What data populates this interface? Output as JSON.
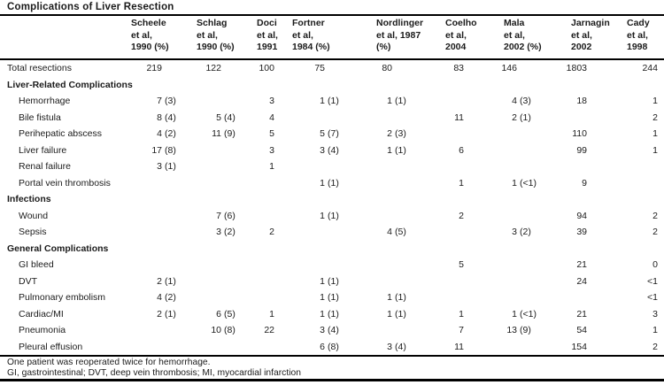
{
  "title": "Complications of Liver Resection",
  "colors": {
    "text": "#1b1b1b",
    "line": "#000000",
    "background": "#ffffff"
  },
  "table": {
    "columns": [
      {
        "id": "scheele",
        "label": "Scheele et al, 1990 (%)",
        "lines": [
          "Scheele",
          "et al,",
          "1990 (%)"
        ]
      },
      {
        "id": "schlag",
        "label": "Schlag et al, 1990 (%)",
        "lines": [
          "Schlag",
          "et al,",
          "1990 (%)"
        ]
      },
      {
        "id": "doci",
        "label": "Doci et al, 1991",
        "lines": [
          "Doci",
          "et al,",
          "1991"
        ]
      },
      {
        "id": "fortner",
        "label": "Fortner et al, 1984 (%)",
        "lines": [
          "Fortner",
          "et al,",
          "1984 (%)"
        ]
      },
      {
        "id": "nordlinger",
        "label": "Nordlinger et al, 1987 (%)",
        "lines": [
          "Nordlinger",
          "et al, 1987",
          "(%)"
        ]
      },
      {
        "id": "coelho",
        "label": "Coelho et al, 2004",
        "lines": [
          "Coelho",
          "et al,",
          "2004"
        ]
      },
      {
        "id": "mala",
        "label": "Mala et al, 2002 (%)",
        "lines": [
          "Mala",
          "et al,",
          "2002 (%)"
        ]
      },
      {
        "id": "jarnagin",
        "label": "Jarnagin et al, 2002",
        "lines": [
          "Jarnagin",
          "et al,",
          "2002"
        ]
      },
      {
        "id": "cady",
        "label": "Cady et al, 1998",
        "lines": [
          "Cady",
          "et al,",
          "1998"
        ]
      }
    ],
    "rows": [
      {
        "type": "data",
        "label": "Total resections",
        "indent": false,
        "values": [
          "219",
          "122",
          "100",
          "75",
          "80",
          "83",
          "146",
          "1803",
          "244"
        ]
      },
      {
        "type": "section",
        "label": "Liver-Related Complications"
      },
      {
        "type": "data",
        "label": "Hemorrhage",
        "indent": true,
        "values": [
          "7 (3)",
          "",
          "3",
          "1 (1)",
          "1 (1)",
          "",
          "4 (3)",
          "18",
          "1"
        ]
      },
      {
        "type": "data",
        "label": "Bile fistula",
        "indent": true,
        "values": [
          "8 (4)",
          "5 (4)",
          "4",
          "",
          "",
          "11",
          "2 (1)",
          "",
          "2"
        ]
      },
      {
        "type": "data",
        "label": "Perihepatic abscess",
        "indent": true,
        "values": [
          "4 (2)",
          "11 (9)",
          "5",
          "5 (7)",
          "2 (3)",
          "",
          "",
          "110",
          "1"
        ]
      },
      {
        "type": "data",
        "label": "Liver failure",
        "indent": true,
        "values": [
          "17 (8)",
          "",
          "3",
          "3 (4)",
          "1 (1)",
          "6",
          "",
          "99",
          "1"
        ]
      },
      {
        "type": "data",
        "label": "Renal failure",
        "indent": true,
        "values": [
          "3 (1)",
          "",
          "1",
          "",
          "",
          "",
          "",
          "",
          ""
        ]
      },
      {
        "type": "data",
        "label": "Portal vein thrombosis",
        "indent": true,
        "values": [
          "",
          "",
          "",
          "1 (1)",
          "",
          "1",
          "1 (<1)",
          "9",
          ""
        ]
      },
      {
        "type": "section",
        "label": "Infections"
      },
      {
        "type": "data",
        "label": "Wound",
        "indent": true,
        "values": [
          "",
          "7 (6)",
          "",
          "1 (1)",
          "",
          "2",
          "",
          "94",
          "2"
        ]
      },
      {
        "type": "data",
        "label": "Sepsis",
        "indent": true,
        "values": [
          "",
          "3 (2)",
          "2",
          "",
          "4 (5)",
          "",
          "3 (2)",
          "39",
          "2"
        ]
      },
      {
        "type": "section",
        "label": "General Complications"
      },
      {
        "type": "data",
        "label": "GI bleed",
        "indent": true,
        "values": [
          "",
          "",
          "",
          "",
          "",
          "5",
          "",
          "21",
          "0"
        ]
      },
      {
        "type": "data",
        "label": "DVT",
        "indent": true,
        "values": [
          "2 (1)",
          "",
          "",
          "1 (1)",
          "",
          "",
          "",
          "24",
          "<1"
        ]
      },
      {
        "type": "data",
        "label": "Pulmonary embolism",
        "indent": true,
        "values": [
          "4 (2)",
          "",
          "",
          "1 (1)",
          "1 (1)",
          "",
          "",
          "",
          "<1"
        ]
      },
      {
        "type": "data",
        "label": "Cardiac/MI",
        "indent": true,
        "values": [
          "2 (1)",
          "6 (5)",
          "1",
          "1 (1)",
          "1 (1)",
          "1",
          "1 (<1)",
          "21",
          "3"
        ]
      },
      {
        "type": "data",
        "label": "Pneumonia",
        "indent": true,
        "values": [
          "",
          "10 (8)",
          "22",
          "3 (4)",
          "",
          "7",
          "13 (9)",
          "54",
          "1"
        ]
      },
      {
        "type": "data",
        "label": "Pleural effusion",
        "indent": true,
        "values": [
          "",
          "",
          "",
          "6 (8)",
          "3 (4)",
          "11",
          "",
          "154",
          "2"
        ]
      }
    ]
  },
  "footnotes": [
    "One patient was reoperated twice for hemorrhage.",
    "GI, gastrointestinal; DVT, deep vein thrombosis; MI, myocardial infarction"
  ]
}
